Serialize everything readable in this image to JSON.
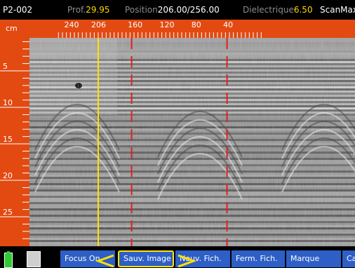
{
  "status": {
    "file": "P2-002",
    "depth_label": "Prof.",
    "depth_value": "29.95",
    "position_label": "Position",
    "position_value": "206.00/256.00",
    "dielectric_label": "Dielectrique",
    "dielectric_value": "6.50",
    "app_name": "ScanMax"
  },
  "ruler": {
    "unit": "cm",
    "top_labels": [
      {
        "text": "240",
        "pos": 240
      },
      {
        "text": "206",
        "pos": 206
      },
      {
        "text": "160",
        "pos": 160
      },
      {
        "text": "120",
        "pos": 120
      },
      {
        "text": "80",
        "pos": 80
      },
      {
        "text": "40",
        "pos": 40
      }
    ],
    "left_labels": [
      {
        "text": "5",
        "depth": 5
      },
      {
        "text": "10",
        "depth": 10
      },
      {
        "text": "15",
        "depth": 15
      },
      {
        "text": "20",
        "depth": 20
      },
      {
        "text": "25",
        "depth": 25
      }
    ]
  },
  "cursor_position": 206,
  "markers": [
    164,
    44
  ],
  "colors": {
    "ruler": "#e24a12",
    "cursor": "#ffe100",
    "marker": "#e02020",
    "button": "#2e5fc6"
  },
  "buttons": [
    {
      "label": "Focus On",
      "name": "focus-on-button"
    },
    {
      "label": "Sauv. Image",
      "name": "save-image-button",
      "selected": true
    },
    {
      "label": "Nouv. Fich.",
      "name": "new-file-button"
    },
    {
      "label": "Ferm. Fich.",
      "name": "close-file-button"
    },
    {
      "label": "Marque",
      "name": "mark-button"
    },
    {
      "label": "Ca",
      "name": "cal-button"
    }
  ]
}
